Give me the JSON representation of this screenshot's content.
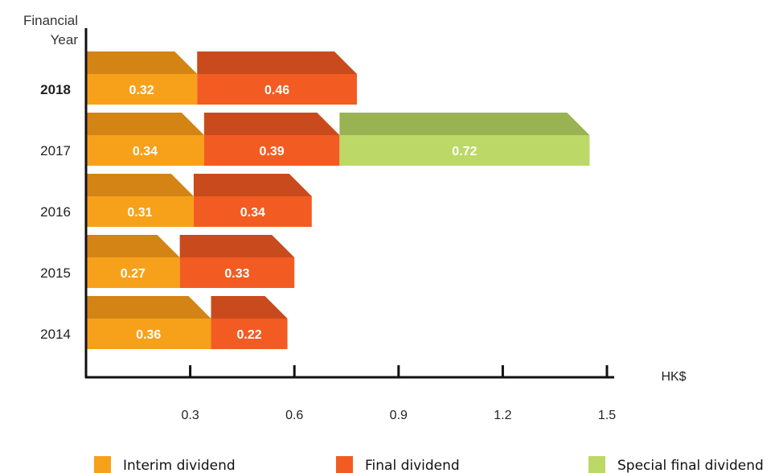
{
  "chart_data": {
    "type": "bar",
    "orientation": "horizontal",
    "stacked": true,
    "y_axis_title_lines": [
      "Financial",
      "Year"
    ],
    "x_axis_unit": "HK$",
    "categories": [
      "2018",
      "2017",
      "2016",
      "2015",
      "2014"
    ],
    "highlight_category": "2018",
    "x_ticks": [
      "0.3",
      "0.6",
      "0.9",
      "1.2",
      "1.5"
    ],
    "xlim": [
      0,
      1.5
    ],
    "series": [
      {
        "name": "Interim dividend",
        "color": "#F7A11A",
        "top_color": "#D38414",
        "values": [
          0.32,
          0.34,
          0.31,
          0.27,
          0.36
        ]
      },
      {
        "name": "Final dividend",
        "color": "#F25C22",
        "top_color": "#C94A1C",
        "values": [
          0.46,
          0.39,
          0.34,
          0.33,
          0.22
        ]
      },
      {
        "name": "Special final dividend",
        "color": "#BCD866",
        "top_color": "#9AB352",
        "values": [
          null,
          0.72,
          null,
          null,
          null
        ]
      }
    ]
  }
}
